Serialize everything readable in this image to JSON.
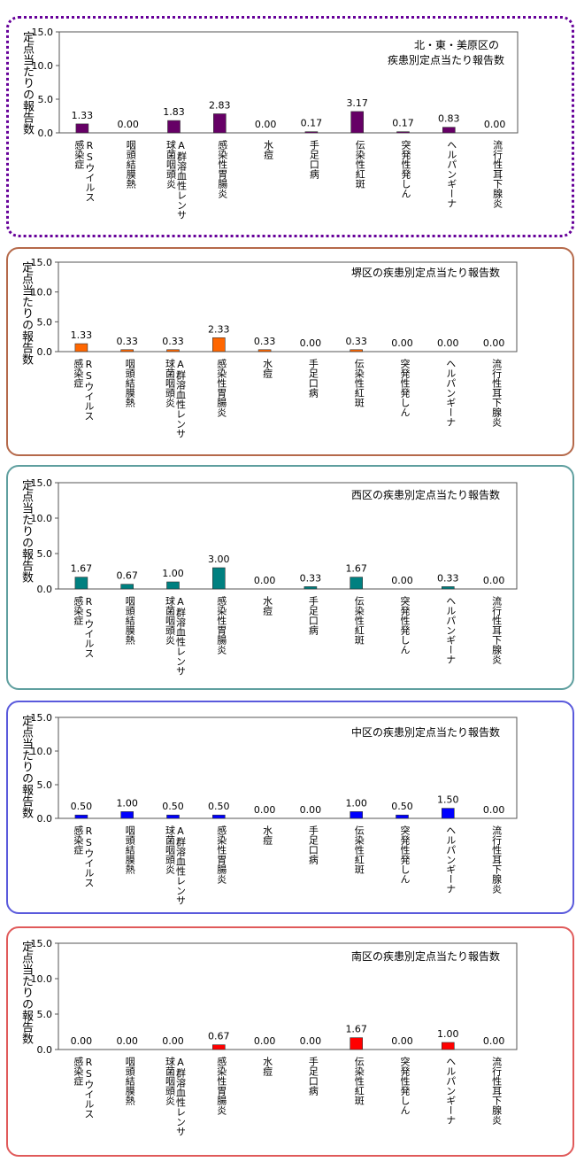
{
  "y_axis_label": "定点当たりの報告数",
  "categories": [
    [
      "RSウイルス",
      "感染症"
    ],
    [
      "咽頭結膜熱"
    ],
    [
      "A群溶血性レンサ",
      "球菌咽頭炎"
    ],
    [
      "感染性胃腸炎"
    ],
    [
      "水痘"
    ],
    [
      "手足口病"
    ],
    [
      "伝染性紅斑"
    ],
    [
      "突発性発しん"
    ],
    [
      "ヘルパンギーナ"
    ],
    [
      "流行性耳下腺炎"
    ]
  ],
  "chart_data": [
    {
      "type": "bar",
      "title": "北・東・美原区の\n疾患別定点当たり報告数",
      "color": "#660066",
      "border_color": "#660099",
      "ylim": [
        0,
        15
      ],
      "yticks": [
        "0.0",
        "5.0",
        "10.0",
        "15.0"
      ],
      "values": [
        1.33,
        0.0,
        1.83,
        2.83,
        0.0,
        0.17,
        3.17,
        0.17,
        0.83,
        0.0
      ],
      "value_labels": [
        "1.33",
        "0.00",
        "1.83",
        "2.83",
        "0.00",
        "0.17",
        "3.17",
        "0.17",
        "0.83",
        "0.00"
      ]
    },
    {
      "type": "bar",
      "title": "堺区の疾患別定点当たり報告数",
      "color": "#ff6600",
      "border_color": "#b5694a",
      "ylim": [
        0,
        15
      ],
      "yticks": [
        "0.0",
        "5.0",
        "10.0",
        "15.0"
      ],
      "values": [
        1.33,
        0.33,
        0.33,
        2.33,
        0.33,
        0.0,
        0.33,
        0.0,
        0.0,
        0.0
      ],
      "value_labels": [
        "1.33",
        "0.33",
        "0.33",
        "2.33",
        "0.33",
        "0.00",
        "0.33",
        "0.00",
        "0.00",
        "0.00"
      ]
    },
    {
      "type": "bar",
      "title": "西区の疾患別定点当たり報告数",
      "color": "#008080",
      "border_color": "#5f9f9f",
      "ylim": [
        0,
        15
      ],
      "yticks": [
        "0.0",
        "5.0",
        "10.0",
        "15.0"
      ],
      "values": [
        1.67,
        0.67,
        1.0,
        3.0,
        0.0,
        0.33,
        1.67,
        0.0,
        0.33,
        0.0
      ],
      "value_labels": [
        "1.67",
        "0.67",
        "1.00",
        "3.00",
        "0.00",
        "0.33",
        "1.67",
        "0.00",
        "0.33",
        "0.00"
      ]
    },
    {
      "type": "bar",
      "title": "中区の疾患別定点当たり報告数",
      "color": "#0000ff",
      "border_color": "#5a5adc",
      "ylim": [
        0,
        15
      ],
      "yticks": [
        "0.0",
        "5.0",
        "10.0",
        "15.0"
      ],
      "values": [
        0.5,
        1.0,
        0.5,
        0.5,
        0.0,
        0.0,
        1.0,
        0.5,
        1.5,
        0.0
      ],
      "value_labels": [
        "0.50",
        "1.00",
        "0.50",
        "0.50",
        "0.00",
        "0.00",
        "1.00",
        "0.50",
        "1.50",
        "0.00"
      ]
    },
    {
      "type": "bar",
      "title": "南区の疾患別定点当たり報告数",
      "color": "#ff0000",
      "border_color": "#e05a5a",
      "ylim": [
        0,
        15
      ],
      "yticks": [
        "0.0",
        "5.0",
        "10.0",
        "15.0"
      ],
      "values": [
        0.0,
        0.0,
        0.0,
        0.67,
        0.0,
        0.0,
        1.67,
        0.0,
        1.0,
        0.0
      ],
      "value_labels": [
        "0.00",
        "0.00",
        "0.00",
        "0.67",
        "0.00",
        "0.00",
        "1.67",
        "0.00",
        "1.00",
        "0.00"
      ]
    }
  ]
}
